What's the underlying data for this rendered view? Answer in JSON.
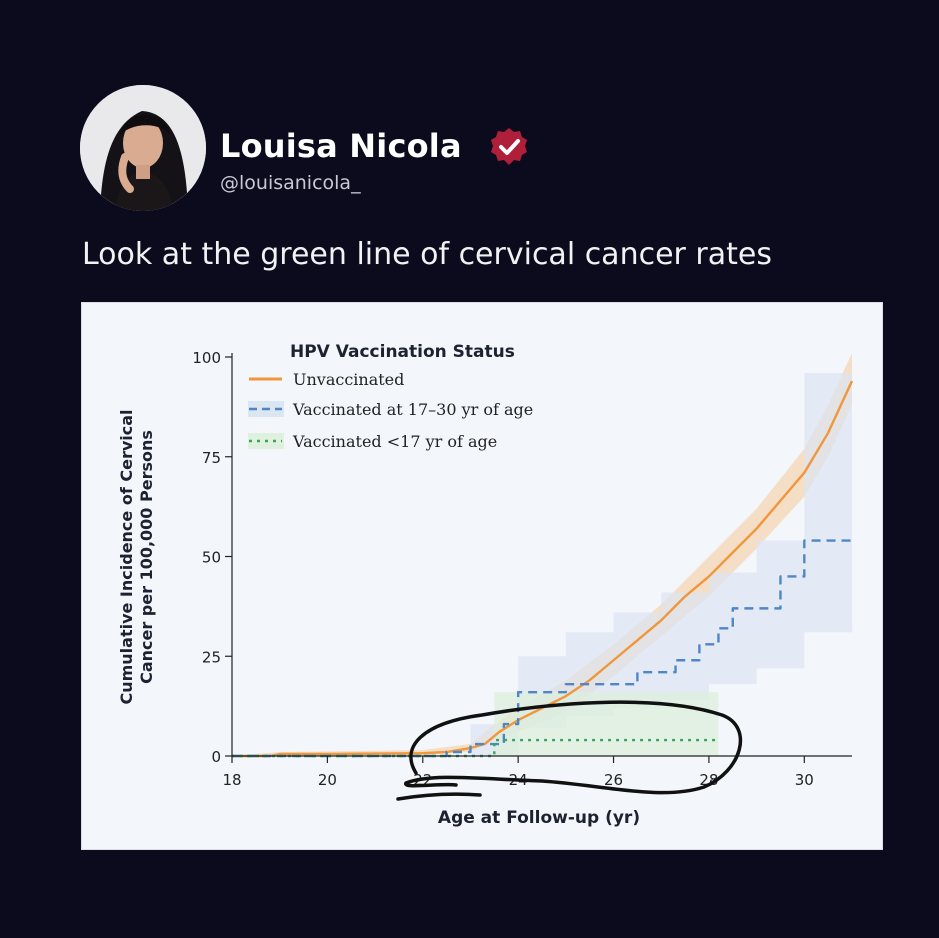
{
  "tweet": {
    "author_name": "Louisa Nicola",
    "author_handle": "@louisanicola_",
    "verified_icon": "verified-badge-icon",
    "text": "Look at the green line of cervical cancer rates",
    "colors": {
      "background": "#0c0b1e",
      "badge": "#b01f3a",
      "text": "#ffffff"
    }
  },
  "chart_data": {
    "type": "line",
    "title": "",
    "legend_title": "HPV Vaccination Status",
    "legend_placement": "top-left",
    "xlabel": "Age at Follow-up (yr)",
    "ylabel_line1": "Cumulative Incidence of Cervical",
    "ylabel_line2": "Cancer per 100,000 Persons",
    "xlim": [
      18,
      31
    ],
    "ylim": [
      0,
      100
    ],
    "x_ticks": [
      {
        "value": 18,
        "label": "18"
      },
      {
        "value": 20,
        "label": "20"
      },
      {
        "value": 22,
        "label": "22"
      },
      {
        "value": 24,
        "label": "24"
      },
      {
        "value": 26,
        "label": "26"
      },
      {
        "value": 28,
        "label": "28"
      },
      {
        "value": 30,
        "label": "30"
      }
    ],
    "y_ticks": [
      {
        "value": 0,
        "label": "0"
      },
      {
        "value": 25,
        "label": "25"
      },
      {
        "value": 50,
        "label": "50"
      },
      {
        "value": 75,
        "label": "75"
      },
      {
        "value": 100,
        "label": "100"
      }
    ],
    "series": [
      {
        "name": "Unvaccinated",
        "color": "#f0963c",
        "style": "solid",
        "points": [
          [
            18,
            0
          ],
          [
            18.8,
            0
          ],
          [
            19,
            0.5
          ],
          [
            20,
            0.5
          ],
          [
            21,
            0.6
          ],
          [
            22,
            0.7
          ],
          [
            22.5,
            1
          ],
          [
            23,
            2
          ],
          [
            23.3,
            3
          ],
          [
            23.6,
            6
          ],
          [
            24,
            9
          ],
          [
            24.5,
            12
          ],
          [
            25,
            15
          ],
          [
            25.5,
            19
          ],
          [
            26,
            24
          ],
          [
            26.5,
            29
          ],
          [
            27,
            34
          ],
          [
            27.5,
            40
          ],
          [
            28,
            45
          ],
          [
            28.5,
            51
          ],
          [
            29,
            57
          ],
          [
            29.5,
            64
          ],
          [
            30,
            71
          ],
          [
            30.5,
            81
          ],
          [
            31,
            94
          ]
        ],
        "band_upper": [
          [
            18,
            0
          ],
          [
            19,
            1
          ],
          [
            22,
            1.5
          ],
          [
            23,
            3
          ],
          [
            23.5,
            8
          ],
          [
            24,
            12
          ],
          [
            25,
            19
          ],
          [
            26,
            28
          ],
          [
            27,
            38
          ],
          [
            28,
            50
          ],
          [
            29,
            62
          ],
          [
            30,
            77
          ],
          [
            30.5,
            88
          ],
          [
            31,
            101
          ]
        ],
        "band_lower": [
          [
            18,
            0
          ],
          [
            19,
            0
          ],
          [
            22,
            0.3
          ],
          [
            23,
            1
          ],
          [
            23.5,
            4
          ],
          [
            24,
            6
          ],
          [
            25,
            11
          ],
          [
            26,
            20
          ],
          [
            27,
            30
          ],
          [
            28,
            40
          ],
          [
            29,
            52
          ],
          [
            30,
            65
          ],
          [
            30.5,
            75
          ],
          [
            31,
            88
          ]
        ]
      },
      {
        "name": "Vaccinated at 17–30 yr of age",
        "color": "#4f86c6",
        "style": "dashed",
        "steps": [
          [
            18,
            0
          ],
          [
            22.5,
            0
          ],
          [
            22.5,
            1
          ],
          [
            23,
            1
          ],
          [
            23,
            3
          ],
          [
            23.7,
            3
          ],
          [
            23.7,
            8
          ],
          [
            24,
            8
          ],
          [
            24,
            16
          ],
          [
            25,
            16
          ],
          [
            25,
            18
          ],
          [
            26.5,
            18
          ],
          [
            26.5,
            21
          ],
          [
            27.3,
            21
          ],
          [
            27.3,
            24
          ],
          [
            27.8,
            24
          ],
          [
            27.8,
            28
          ],
          [
            28.2,
            28
          ],
          [
            28.2,
            32
          ],
          [
            28.5,
            32
          ],
          [
            28.5,
            37
          ],
          [
            29.5,
            37
          ],
          [
            29.5,
            45
          ],
          [
            30,
            45
          ],
          [
            30,
            54
          ],
          [
            31,
            54
          ]
        ],
        "band_upper": [
          [
            18,
            0
          ],
          [
            23,
            0
          ],
          [
            23,
            8
          ],
          [
            24,
            8
          ],
          [
            24,
            25
          ],
          [
            25,
            25
          ],
          [
            25,
            31
          ],
          [
            26,
            31
          ],
          [
            26,
            36
          ],
          [
            27,
            36
          ],
          [
            27,
            41
          ],
          [
            28,
            41
          ],
          [
            28,
            46
          ],
          [
            29,
            46
          ],
          [
            29,
            54
          ],
          [
            30,
            54
          ],
          [
            30,
            96
          ],
          [
            31,
            96
          ]
        ],
        "band_lower": [
          [
            18,
            0
          ],
          [
            23,
            0
          ],
          [
            24,
            0
          ],
          [
            24,
            7
          ],
          [
            25,
            7
          ],
          [
            25,
            10
          ],
          [
            26,
            10
          ],
          [
            26,
            12
          ],
          [
            27,
            12
          ],
          [
            27,
            14
          ],
          [
            28,
            14
          ],
          [
            28,
            18
          ],
          [
            29,
            18
          ],
          [
            29,
            22
          ],
          [
            30,
            22
          ],
          [
            30,
            31
          ],
          [
            31,
            31
          ]
        ]
      },
      {
        "name": "Vaccinated <17 yr of age",
        "color": "#3aa656",
        "style": "dotted",
        "steps": [
          [
            18,
            0
          ],
          [
            23.5,
            0
          ],
          [
            23.5,
            4
          ],
          [
            28.2,
            4
          ]
        ],
        "band_upper": [
          [
            23.5,
            16
          ],
          [
            28.2,
            16
          ]
        ],
        "band_lower": [
          [
            23.5,
            0
          ],
          [
            28.2,
            0
          ]
        ]
      }
    ],
    "grid": false
  }
}
